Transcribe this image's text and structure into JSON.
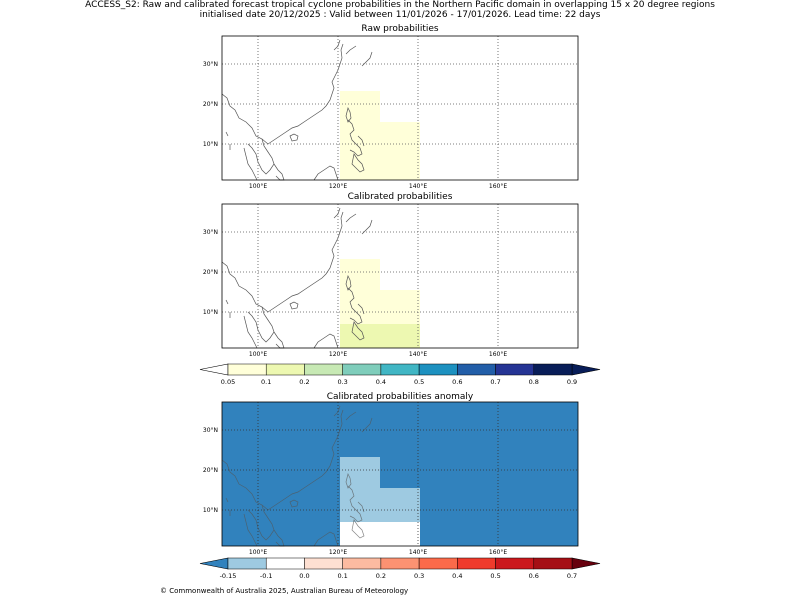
{
  "header": {
    "line1": "ACCESS_S2: Raw and calibrated forecast tropical cyclone probabilities in the Northern Pacific domain in overlapping 15 x 20 degree regions",
    "line2": "initialised date 20/12/2025 :  Valid between 11/01/2026 - 17/01/2026. Lead time: 22 days"
  },
  "panels": [
    {
      "title": "Raw probabilities"
    },
    {
      "title": "Calibrated probabilities"
    },
    {
      "title": "Calibrated probabilities anomaly"
    }
  ],
  "axes": {
    "lon_ticks": [
      "100°E",
      "120°E",
      "140°E",
      "160°E"
    ],
    "lat_ticks": [
      "30°N",
      "20°N",
      "10°N"
    ]
  },
  "colorbar_prob": {
    "labels": [
      "0.05",
      "0.1",
      "0.2",
      "0.3",
      "0.4",
      "0.5",
      "0.6",
      "0.7",
      "0.8",
      "0.9"
    ],
    "colors": [
      "#ffffd9",
      "#edf8b1",
      "#c7e9b4",
      "#7fcdbb",
      "#41b6c4",
      "#1d91c0",
      "#225ea8",
      "#253494",
      "#081d58"
    ],
    "under": "#ffffff",
    "over": "#081d58"
  },
  "colorbar_anom": {
    "labels": [
      "-0.15",
      "-0.1",
      "0.0",
      "0.1",
      "0.2",
      "0.3",
      "0.4",
      "0.5",
      "0.6",
      "0.7"
    ],
    "colors": [
      "#9ecae1",
      "#ffffff",
      "#fee0d2",
      "#fcbba1",
      "#fc9272",
      "#fb6a4a",
      "#ef3b2c",
      "#cb181d",
      "#a50f15"
    ],
    "under": "#3182bd",
    "over": "#67000d"
  },
  "footer": "© Commonwealth of Australia 2025, Australian Bureau of Meteorology"
}
